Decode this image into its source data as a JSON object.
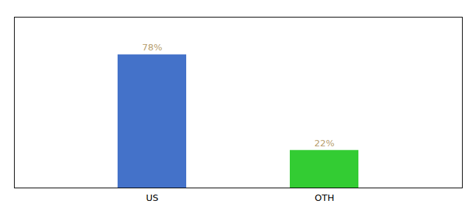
{
  "chart_data": {
    "type": "bar",
    "categories": [
      "US",
      "OTH"
    ],
    "values": [
      78,
      22
    ],
    "value_labels": [
      "78%",
      "22%"
    ],
    "colors": [
      "#4472c9",
      "#33cc33"
    ],
    "ylim": [
      0,
      100
    ],
    "data_labels": true,
    "tick_labels": "x"
  }
}
